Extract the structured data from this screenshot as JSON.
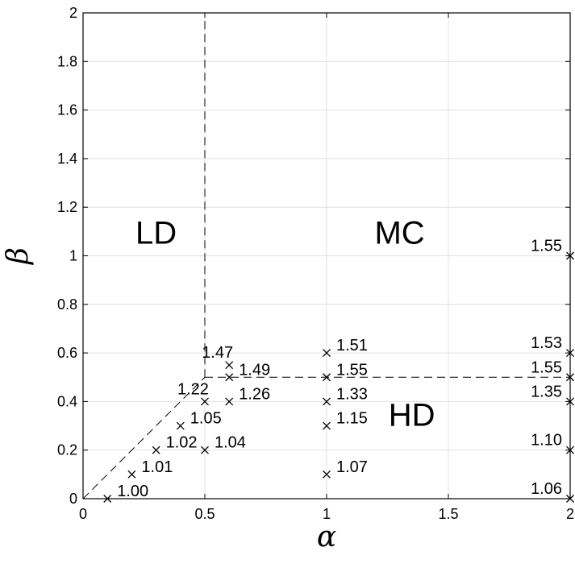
{
  "chart_data": {
    "type": "scatter",
    "xlabel": "α",
    "ylabel": "β",
    "xlim": [
      0,
      2
    ],
    "ylim": [
      0,
      2
    ],
    "grid": true,
    "marker": "x",
    "x_ticks": [
      0,
      0.5,
      1,
      1.5,
      2
    ],
    "x_tick_labels": [
      "0",
      "0.5",
      "1",
      "1.5",
      "2"
    ],
    "y_ticks": [
      0,
      0.2,
      0.4,
      0.6,
      0.8,
      1,
      1.2,
      1.4,
      1.6,
      1.8,
      2
    ],
    "y_tick_labels": [
      "0",
      "0.2",
      "0.4",
      "0.6",
      "0.8",
      "1",
      "1.2",
      "1.4",
      "1.6",
      "1.8",
      "2"
    ],
    "points": [
      {
        "x": 0.1,
        "y": 0.0,
        "label": "1.00",
        "label_side": "right"
      },
      {
        "x": 0.2,
        "y": 0.1,
        "label": "1.01",
        "label_side": "right"
      },
      {
        "x": 0.3,
        "y": 0.2,
        "label": "1.02",
        "label_side": "right"
      },
      {
        "x": 0.4,
        "y": 0.3,
        "label": "1.05",
        "label_side": "right"
      },
      {
        "x": 0.5,
        "y": 0.2,
        "label": "1.04",
        "label_side": "right"
      },
      {
        "x": 0.5,
        "y": 0.4,
        "label": "1.22",
        "label_side": "above-left"
      },
      {
        "x": 0.6,
        "y": 0.4,
        "label": "1.26",
        "label_side": "right"
      },
      {
        "x": 0.6,
        "y": 0.5,
        "label": "1.49",
        "label_side": "right"
      },
      {
        "x": 0.6,
        "y": 0.55,
        "label": "1.47",
        "label_side": "above-left"
      },
      {
        "x": 1.0,
        "y": 0.1,
        "label": "1.07",
        "label_side": "right"
      },
      {
        "x": 1.0,
        "y": 0.3,
        "label": "1.15",
        "label_side": "right"
      },
      {
        "x": 1.0,
        "y": 0.4,
        "label": "1.33",
        "label_side": "right"
      },
      {
        "x": 1.0,
        "y": 0.5,
        "label": "1.55",
        "label_side": "right"
      },
      {
        "x": 1.0,
        "y": 0.6,
        "label": "1.51",
        "label_side": "right"
      },
      {
        "x": 2.0,
        "y": 0.0,
        "label": "1.06",
        "label_side": "left"
      },
      {
        "x": 2.0,
        "y": 0.2,
        "label": "1.10",
        "label_side": "left"
      },
      {
        "x": 2.0,
        "y": 0.4,
        "label": "1.35",
        "label_side": "left"
      },
      {
        "x": 2.0,
        "y": 0.5,
        "label": "1.55",
        "label_side": "left"
      },
      {
        "x": 2.0,
        "y": 0.6,
        "label": "1.53",
        "label_side": "left"
      },
      {
        "x": 2.0,
        "y": 1.0,
        "label": "1.55",
        "label_side": "left"
      }
    ],
    "boundaries": [
      {
        "style": "dashed",
        "x": [
          0,
          0.5
        ],
        "y": [
          0,
          0.5
        ]
      },
      {
        "style": "dashed",
        "x": [
          0.5,
          0.5
        ],
        "y": [
          0.5,
          2
        ]
      },
      {
        "style": "dashed",
        "x": [
          0.5,
          2
        ],
        "y": [
          0.5,
          0.5
        ]
      }
    ],
    "regions": [
      {
        "label": "LD",
        "x": 0.3,
        "y": 1.05
      },
      {
        "label": "MC",
        "x": 1.3,
        "y": 1.05
      },
      {
        "label": "HD",
        "x": 1.35,
        "y": 0.3
      }
    ]
  }
}
